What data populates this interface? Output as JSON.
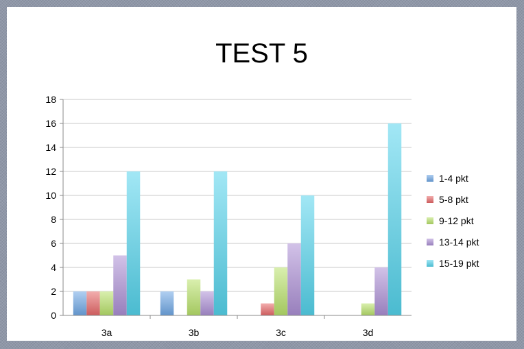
{
  "chart_data": {
    "type": "bar",
    "title": "TEST 5",
    "categories": [
      "3a",
      "3b",
      "3c",
      "3d"
    ],
    "series": [
      {
        "name": "1-4 pkt",
        "values": [
          2,
          2,
          0,
          0
        ],
        "color": "#6fa8e6"
      },
      {
        "name": "5-8 pkt",
        "values": [
          2,
          0,
          1,
          0
        ],
        "color": "#e8696a"
      },
      {
        "name": "9-12 pkt",
        "values": [
          2,
          3,
          4,
          1
        ],
        "color": "#b9e26c"
      },
      {
        "name": "13-14 pkt",
        "values": [
          5,
          2,
          6,
          4
        ],
        "color": "#ad90d6"
      },
      {
        "name": "15-19 pkt",
        "values": [
          12,
          12,
          10,
          16
        ],
        "color": "#55d4ec"
      }
    ],
    "ylim": [
      0,
      18
    ],
    "yticks": [
      0,
      2,
      4,
      6,
      8,
      10,
      12,
      14,
      16,
      18
    ],
    "grid": true,
    "legend": "right"
  }
}
